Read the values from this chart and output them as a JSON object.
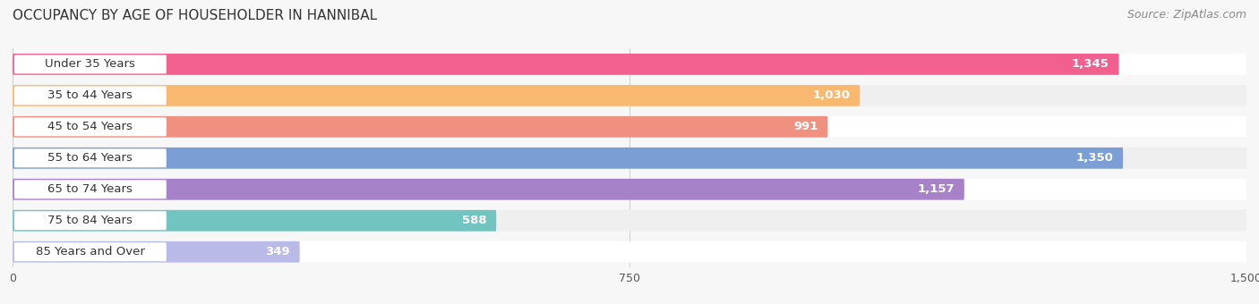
{
  "title": "OCCUPANCY BY AGE OF HOUSEHOLDER IN HANNIBAL",
  "source": "Source: ZipAtlas.com",
  "categories": [
    "Under 35 Years",
    "35 to 44 Years",
    "45 to 54 Years",
    "55 to 64 Years",
    "65 to 74 Years",
    "75 to 84 Years",
    "85 Years and Over"
  ],
  "values": [
    1345,
    1030,
    991,
    1350,
    1157,
    588,
    349
  ],
  "bar_colors": [
    "#F26090",
    "#F9B870",
    "#F09080",
    "#7B9FD4",
    "#A882C8",
    "#72C4C0",
    "#BABAE8"
  ],
  "xlim": [
    0,
    1500
  ],
  "xticks": [
    0,
    750,
    1500
  ],
  "bar_height": 0.68,
  "background_color": "#f7f7f7",
  "row_colors": [
    "#ffffff",
    "#efefef"
  ],
  "title_fontsize": 11,
  "source_fontsize": 9,
  "label_fontsize": 9.5,
  "value_fontsize": 9.5
}
